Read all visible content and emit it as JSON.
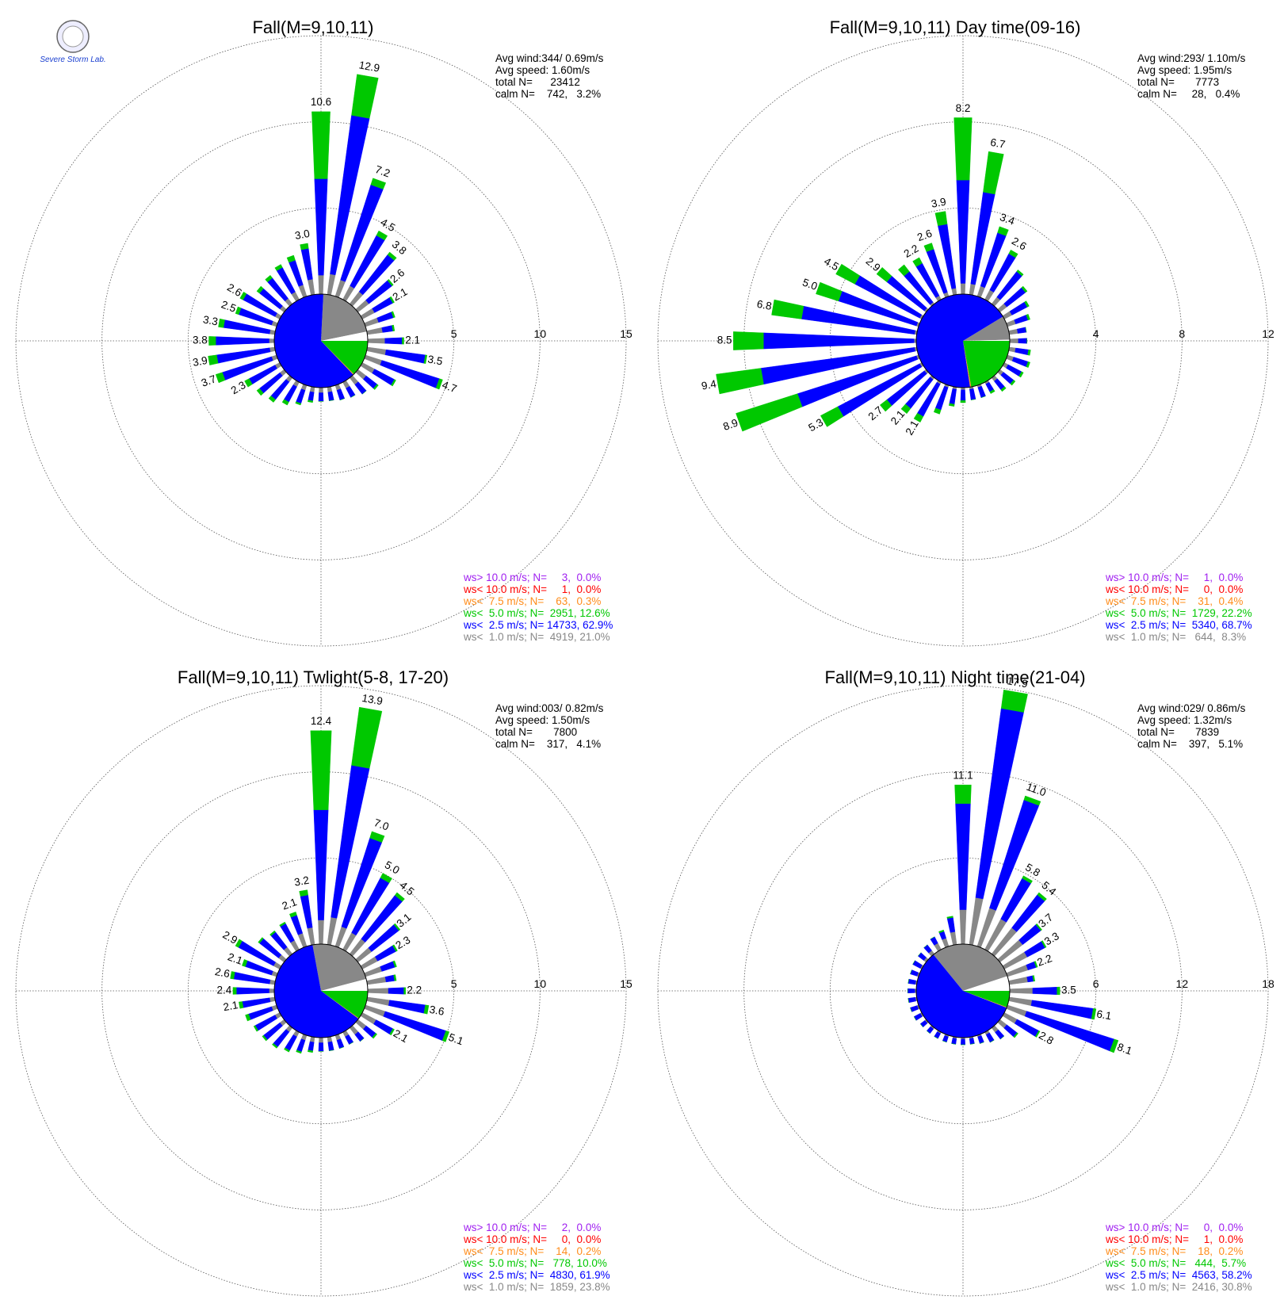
{
  "logo": "Severe Storm Lab.",
  "chart_data": [
    {
      "type": "windrose",
      "title": "Fall(M=9,10,11)",
      "stats": [
        "Avg wind:344/ 0.69m/s",
        "Avg speed: 1.60m/s",
        "total N=      23412",
        "calm N=    742,   3.2%"
      ],
      "calm_percent": 3.2,
      "directions": [
        0,
        10,
        20,
        30,
        40,
        50,
        60,
        70,
        80,
        90,
        100,
        110,
        120,
        130,
        140,
        150,
        160,
        170,
        180,
        190,
        200,
        210,
        220,
        230,
        240,
        250,
        260,
        270,
        280,
        290,
        300,
        310,
        320,
        330,
        340,
        350
      ],
      "rlim": [
        0,
        15
      ],
      "rticks": [
        5,
        10,
        15
      ],
      "series": [
        {
          "name": "ws> 10.0 m/s; N=     3,  0.0%",
          "share": 0.0,
          "color": "#a020f0"
        },
        {
          "name": "ws< 10.0 m/s; N=     1,  0.0%",
          "share": 0.0,
          "color": "#ff0000"
        },
        {
          "name": "ws<  7.5 m/s; N=    63,  0.3%",
          "share": 0.3,
          "color": "#ff8c1a"
        },
        {
          "name": "ws<  5.0 m/s; N=  2951, 12.6%",
          "share": 12.6,
          "color": "#00c800",
          "values": [
            3.9,
            2.4,
            0.4,
            0.3,
            0.2,
            0.1,
            0.1,
            0.1,
            0.1,
            0.1,
            0.1,
            0.2,
            0.1,
            0.1,
            0,
            0,
            0,
            0,
            0,
            0.1,
            0.1,
            0.2,
            0.2,
            0.2,
            0.3,
            0.4,
            0.5,
            0.4,
            0.3,
            0.2,
            0.2,
            0.2,
            0.2,
            0.2,
            0.3,
            0.3
          ]
        },
        {
          "name": "ws<  2.5 m/s; N= 14733, 62.9%",
          "share": 62.9,
          "color": "#0000ff",
          "values": [
            5.6,
            9.3,
            5.8,
            3.3,
            2.7,
            1.7,
            1.2,
            0.9,
            0.6,
            1.0,
            2.3,
            3.5,
            1.3,
            0.8,
            0.7,
            0.6,
            0.6,
            0.5,
            0.5,
            0.5,
            0.8,
            1.0,
            1.3,
            1.5,
            1.7,
            3.0,
            3.1,
            3.1,
            2.7,
            2.0,
            2.1,
            1.5,
            1.5,
            1.6,
            1.5,
            1.8
          ]
        },
        {
          "name": "ws<  1.0 m/s; N=  4919, 21.0%",
          "share": 21.0,
          "color": "#888888",
          "values": [
            1.1,
            1.2,
            1.0,
            0.9,
            0.9,
            0.8,
            0.8,
            0.8,
            0.9,
            1.0,
            1.1,
            1.0,
            0.8,
            0.6,
            0.5,
            0.4,
            0.3,
            0.3,
            0.3,
            0.3,
            0.3,
            0.3,
            0.3,
            0.3,
            0.3,
            0.3,
            0.3,
            0.3,
            0.3,
            0.3,
            0.3,
            0.3,
            0.4,
            0.5,
            0.7,
            0.9
          ]
        }
      ],
      "value_labels": [
        "10.6",
        "12.9",
        "7.2",
        "4.5",
        "3.8",
        "2.6",
        "2.1",
        null,
        null,
        "2.1",
        "3.5",
        "4.7",
        null,
        null,
        null,
        null,
        null,
        null,
        null,
        null,
        null,
        null,
        null,
        null,
        "2.3",
        "3.7",
        "3.9",
        "3.8",
        "3.3",
        "2.5",
        "2.6",
        null,
        null,
        null,
        null,
        "3.0"
      ]
    },
    {
      "type": "windrose",
      "title": "Fall(M=9,10,11) Day time(09-16)",
      "stats": [
        "Avg wind:293/ 1.10m/s",
        "Avg speed: 1.95m/s",
        "total N=       7773",
        "calm N=     28,   0.4%"
      ],
      "calm_percent": 0.4,
      "directions": [
        0,
        10,
        20,
        30,
        40,
        50,
        60,
        70,
        80,
        90,
        100,
        110,
        120,
        130,
        140,
        150,
        160,
        170,
        180,
        190,
        200,
        210,
        220,
        230,
        240,
        250,
        260,
        270,
        280,
        290,
        300,
        310,
        320,
        330,
        340,
        350
      ],
      "rlim": [
        0,
        12
      ],
      "rticks": [
        4,
        8,
        12
      ],
      "series": [
        {
          "name": "ws> 10.0 m/s; N=     1,  0.0%",
          "share": 0.0,
          "color": "#a020f0"
        },
        {
          "name": "ws< 10.0 m/s; N=     0,  0.0%",
          "share": 0.0,
          "color": "#ff0000"
        },
        {
          "name": "ws<  7.5 m/s; N=    31,  0.4%",
          "share": 0.4,
          "color": "#ff8c1a"
        },
        {
          "name": "ws<  5.0 m/s; N=  1729, 22.2%",
          "share": 22.2,
          "color": "#00c800",
          "values": [
            2.9,
            1.9,
            0.3,
            0.2,
            0.1,
            0.1,
            0.1,
            0.1,
            0,
            0,
            0.1,
            0.1,
            0.1,
            0.1,
            0.1,
            0.1,
            0,
            0,
            0.1,
            0.1,
            0.2,
            0.3,
            0.3,
            0.4,
            0.9,
            3.0,
            2.1,
            1.4,
            1.4,
            1.1,
            1.0,
            0.6,
            0.4,
            0.3,
            0.3,
            0.6
          ]
        },
        {
          "name": "ws<  2.5 m/s; N=  5340, 68.7%",
          "share": 68.7,
          "color": "#0000ff",
          "values": [
            4.8,
            4.3,
            2.6,
            1.9,
            1.5,
            1.1,
            0.8,
            0.6,
            0.4,
            0.4,
            0.6,
            0.7,
            0.7,
            0.6,
            0.5,
            0.4,
            0.5,
            0.5,
            0.5,
            0.7,
            1.1,
            1.7,
            1.7,
            2.2,
            4.3,
            5.8,
            7.2,
            7.0,
            5.3,
            3.8,
            3.4,
            2.2,
            1.8,
            1.7,
            2.1,
            3.0
          ]
        },
        {
          "name": "ws<  1.0 m/s; N=   644,  8.3%",
          "share": 8.3,
          "color": "#888888",
          "values": [
            0.5,
            0.5,
            0.5,
            0.5,
            0.4,
            0.4,
            0.4,
            0.4,
            0.4,
            0.4,
            0.3,
            0.3,
            0.2,
            0.2,
            0.2,
            0.1,
            0.1,
            0.1,
            0.1,
            0.1,
            0.1,
            0.1,
            0.1,
            0.1,
            0.1,
            0.1,
            0.1,
            0.1,
            0.1,
            0.1,
            0.1,
            0.1,
            0.1,
            0.2,
            0.2,
            0.3
          ]
        }
      ],
      "value_labels": [
        "8.2",
        "6.7",
        "3.4",
        "2.6",
        null,
        null,
        null,
        null,
        null,
        null,
        null,
        null,
        null,
        null,
        null,
        null,
        null,
        null,
        null,
        null,
        null,
        "2.1",
        "2.1",
        "2.7",
        "5.3",
        "8.9",
        "9.4",
        "8.5",
        "6.8",
        "5.0",
        "4.5",
        "2.9",
        null,
        "2.2",
        "2.6",
        "3.9"
      ]
    },
    {
      "type": "windrose",
      "title": "Fall(M=9,10,11) Twlight(5-8, 17-20)",
      "stats": [
        "Avg wind:003/ 0.82m/s",
        "Avg speed: 1.50m/s",
        "total N=       7800",
        "calm N=    317,   4.1%"
      ],
      "calm_percent": 4.1,
      "directions": [
        0,
        10,
        20,
        30,
        40,
        50,
        60,
        70,
        80,
        90,
        100,
        110,
        120,
        130,
        140,
        150,
        160,
        170,
        180,
        190,
        200,
        210,
        220,
        230,
        240,
        250,
        260,
        270,
        280,
        290,
        300,
        310,
        320,
        330,
        340,
        350
      ],
      "rlim": [
        0,
        15
      ],
      "rticks": [
        5,
        10,
        15
      ],
      "series": [
        {
          "name": "ws> 10.0 m/s; N=     2,  0.0%",
          "share": 0.0,
          "color": "#a020f0"
        },
        {
          "name": "ws< 10.0 m/s; N=     0,  0.0%",
          "share": 0.0,
          "color": "#ff0000"
        },
        {
          "name": "ws<  7.5 m/s; N=    14,  0.2%",
          "share": 0.2,
          "color": "#ff8c1a"
        },
        {
          "name": "ws<  5.0 m/s; N=   778, 10.0%",
          "share": 10.0,
          "color": "#00c800",
          "values": [
            4.6,
            3.4,
            0.4,
            0.3,
            0.2,
            0.1,
            0.1,
            0.1,
            0.1,
            0.1,
            0.2,
            0.2,
            0.1,
            0.1,
            0,
            0,
            0,
            0,
            0,
            0.1,
            0.1,
            0.1,
            0.1,
            0.1,
            0.1,
            0.2,
            0.2,
            0.2,
            0.2,
            0.2,
            0.2,
            0.1,
            0.1,
            0.1,
            0.2,
            0.3
          ]
        },
        {
          "name": "ws<  2.5 m/s; N=  4830, 61.9%",
          "share": 61.9,
          "color": "#0000ff",
          "values": [
            6.4,
            8.9,
            5.4,
            3.6,
            3.2,
            2.0,
            1.2,
            0.8,
            0.5,
            0.9,
            2.1,
            3.7,
            1.1,
            0.7,
            0.5,
            0.5,
            0.5,
            0.5,
            0.5,
            0.5,
            0.7,
            0.9,
            1.1,
            1.2,
            1.3,
            1.4,
            1.6,
            1.9,
            2.1,
            1.6,
            2.3,
            1.4,
            1.1,
            1.1,
            1.1,
            1.9
          ]
        },
        {
          "name": "ws<  1.0 m/s; N=  1859, 23.8%",
          "share": 23.8,
          "color": "#888888",
          "values": [
            1.4,
            1.6,
            1.2,
            1.1,
            1.1,
            1.0,
            1.0,
            1.0,
            1.1,
            1.2,
            1.3,
            1.2,
            0.9,
            0.6,
            0.5,
            0.3,
            0.3,
            0.3,
            0.3,
            0.3,
            0.3,
            0.3,
            0.3,
            0.3,
            0.3,
            0.3,
            0.3,
            0.3,
            0.3,
            0.3,
            0.4,
            0.4,
            0.5,
            0.6,
            0.8,
            1.0
          ]
        }
      ],
      "value_labels": [
        "12.4",
        "13.9",
        "7.0",
        "5.0",
        "4.5",
        "3.1",
        "2.3",
        null,
        null,
        "2.2",
        "3.6",
        "5.1",
        "2.1",
        null,
        null,
        null,
        null,
        null,
        null,
        null,
        null,
        null,
        null,
        null,
        null,
        null,
        "2.1",
        "2.4",
        "2.6",
        "2.1",
        "2.9",
        null,
        null,
        null,
        "2.1",
        "3.2"
      ]
    },
    {
      "type": "windrose",
      "title": "Fall(M=9,10,11) Night time(21-04)",
      "stats": [
        "Avg wind:029/ 0.86m/s",
        "Avg speed: 1.32m/s",
        "total N=       7839",
        "calm N=    397,   5.1%"
      ],
      "calm_percent": 5.1,
      "directions": [
        0,
        10,
        20,
        30,
        40,
        50,
        60,
        70,
        80,
        90,
        100,
        110,
        120,
        130,
        140,
        150,
        160,
        170,
        180,
        190,
        200,
        210,
        220,
        230,
        240,
        250,
        260,
        270,
        280,
        290,
        300,
        310,
        320,
        330,
        340,
        350
      ],
      "rlim": [
        0,
        18
      ],
      "rticks": [
        6,
        12,
        18
      ],
      "series": [
        {
          "name": "ws> 10.0 m/s; N=     0,  0.0%",
          "share": 0.0,
          "color": "#a020f0"
        },
        {
          "name": "ws< 10.0 m/s; N=     1,  0.0%",
          "share": 0.0,
          "color": "#ff0000"
        },
        {
          "name": "ws<  7.5 m/s; N=    18,  0.2%",
          "share": 0.2,
          "color": "#ff8c1a"
        },
        {
          "name": "ws<  5.0 m/s; N=   444,  5.7%",
          "share": 5.7,
          "color": "#00c800",
          "values": [
            1.3,
            1.3,
            0.3,
            0.2,
            0.2,
            0.1,
            0.1,
            0.1,
            0.1,
            0.2,
            0.2,
            0.3,
            0.1,
            0.1,
            0,
            0,
            0,
            0,
            0,
            0,
            0,
            0,
            0,
            0,
            0,
            0,
            0,
            0,
            0,
            0,
            0,
            0,
            0,
            0,
            0.1,
            0.1
          ]
        },
        {
          "name": "ws<  2.5 m/s; N=  4563, 58.2%",
          "share": 58.2,
          "color": "#0000ff",
          "values": [
            7.4,
            13.3,
            7.9,
            3.2,
            2.9,
            1.6,
            1.4,
            0.6,
            0.4,
            1.7,
            4.3,
            6.4,
            1.7,
            0.9,
            0.6,
            0.6,
            0.5,
            0.4,
            0.4,
            0.4,
            0.4,
            0.4,
            0.4,
            0.4,
            0.5,
            0.5,
            0.5,
            0.5,
            0.5,
            0.5,
            0.6,
            0.5,
            0.5,
            0.5,
            0.5,
            1.0
          ]
        },
        {
          "name": "ws<  1.0 m/s; N=  2416, 30.8%",
          "share": 30.8,
          "color": "#888888",
          "values": [
            2.4,
            3.3,
            2.8,
            2.4,
            2.3,
            2.0,
            1.8,
            1.5,
            1.3,
            1.6,
            1.6,
            1.4,
            1.0,
            0.6,
            0.4,
            0.2,
            0.1,
            0.1,
            0.1,
            0.1,
            0.1,
            0.1,
            0.1,
            0.1,
            0.1,
            0.1,
            0.1,
            0.1,
            0.1,
            0.1,
            0.1,
            0.2,
            0.3,
            0.5,
            0.6,
            0.9
          ]
        }
      ],
      "value_labels": [
        "11.1",
        "17.9",
        "11.0",
        "5.8",
        "5.4",
        "3.7",
        "3.3",
        "2.2",
        null,
        "3.5",
        "6.1",
        "8.1",
        "2.8",
        null,
        null,
        null,
        null,
        null,
        null,
        null,
        null,
        null,
        null,
        null,
        null,
        null,
        null,
        null,
        null,
        null,
        null,
        null,
        null,
        null,
        null,
        null
      ]
    }
  ]
}
